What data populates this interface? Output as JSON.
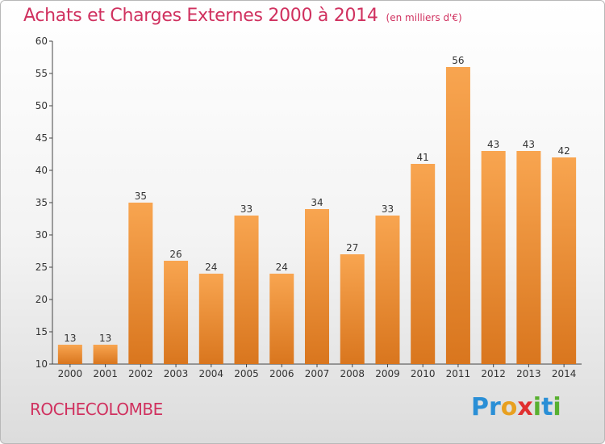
{
  "header": {
    "title": "Achats et Charges Externes 2000 à 2014",
    "subtitle": "(en milliers d'€)"
  },
  "footer": {
    "commune": "ROCHECOLOMBE",
    "logo_letters": [
      {
        "ch": "P",
        "color": "#2a8fd6"
      },
      {
        "ch": "r",
        "color": "#2a8fd6"
      },
      {
        "ch": "o",
        "color": "#e8a020"
      },
      {
        "ch": "x",
        "color": "#e03030"
      },
      {
        "ch": "i",
        "color": "#58b030"
      },
      {
        "ch": "t",
        "color": "#2a8fd6"
      },
      {
        "ch": "i",
        "color": "#58b030"
      }
    ]
  },
  "chart_data": {
    "type": "bar",
    "categories": [
      "2000",
      "2001",
      "2002",
      "2003",
      "2004",
      "2005",
      "2006",
      "2007",
      "2008",
      "2009",
      "2010",
      "2011",
      "2012",
      "2013",
      "2014"
    ],
    "values": [
      13,
      13,
      35,
      26,
      24,
      33,
      24,
      34,
      27,
      33,
      41,
      56,
      43,
      43,
      42
    ],
    "ylim": [
      10,
      60
    ],
    "yticks": [
      10,
      15,
      20,
      25,
      30,
      35,
      40,
      45,
      50,
      55,
      60
    ],
    "grid": false,
    "bar_colors": {
      "top": "#f8a550",
      "bottom": "#d9761e"
    }
  }
}
